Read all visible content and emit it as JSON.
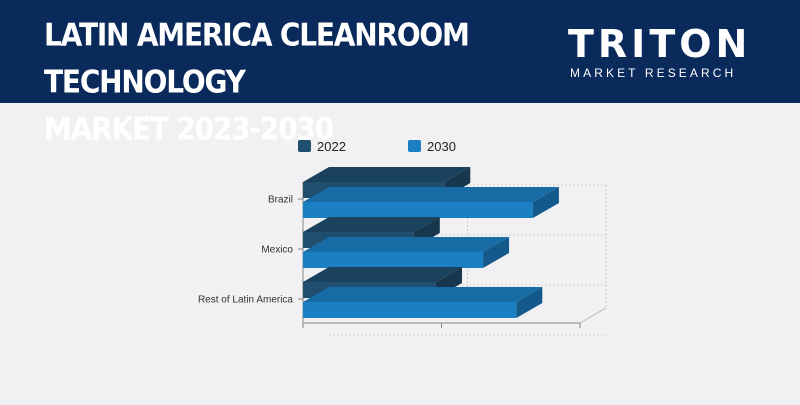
{
  "header": {
    "title_line1": "LATIN AMERICA CLEANROOM TECHNOLOGY",
    "title_line2": "MARKET 2023-2030",
    "logo_word": "TRITON",
    "logo_sub": "MARKET RESEARCH"
  },
  "colors": {
    "header_bg": "#0b2a5c",
    "series_2022": "#1f4e6e",
    "series_2030": "#1b7fc3"
  },
  "chart_data": {
    "type": "bar",
    "orientation": "horizontal",
    "categories": [
      "Brazil",
      "Mexico",
      "Rest of Latin America"
    ],
    "series": [
      {
        "name": "2022",
        "values": [
          51,
          40,
          48
        ]
      },
      {
        "name": "2030",
        "values": [
          83,
          65,
          77
        ]
      }
    ],
    "xlim": [
      0,
      100
    ],
    "x_tick_labels_shown": false,
    "grid": true,
    "legend_position": "top",
    "style": "3d"
  }
}
